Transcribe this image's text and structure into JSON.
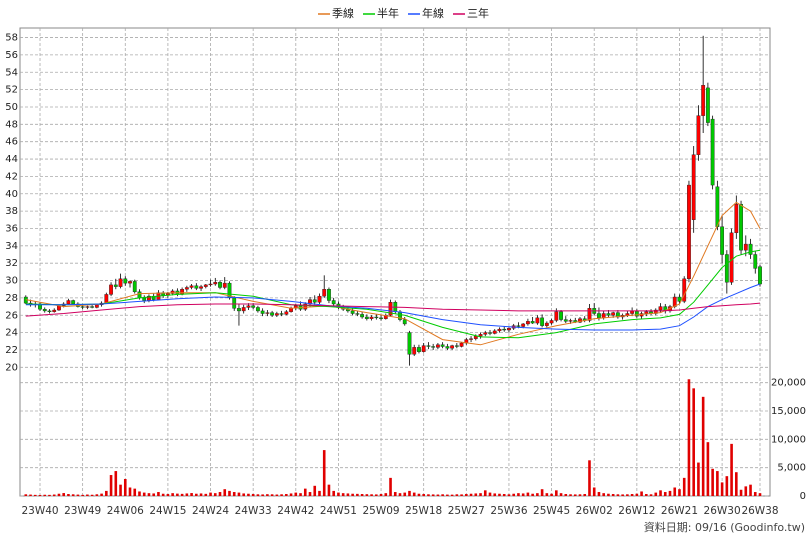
{
  "chart_data": {
    "type": "candlestick",
    "ylim": [
      19,
      59.1
    ],
    "yticks": [
      20,
      22,
      24,
      26,
      28,
      30,
      32,
      34,
      36,
      38,
      40,
      42,
      44,
      46,
      48,
      50,
      52,
      54,
      56,
      58
    ],
    "grid": true,
    "up_color": "#ff0000",
    "down_color": "#00c800",
    "footer": "資料日期: 09/16 (Goodinfo.tw)",
    "categories": [
      null,
      null,
      null,
      "23W40",
      null,
      null,
      null,
      null,
      null,
      null,
      null,
      null,
      "23W49",
      null,
      null,
      null,
      null,
      null,
      null,
      null,
      null,
      "24W06",
      null,
      null,
      null,
      null,
      null,
      null,
      null,
      null,
      "24W15",
      null,
      null,
      null,
      null,
      null,
      null,
      null,
      null,
      "24W24",
      null,
      null,
      null,
      null,
      null,
      null,
      null,
      null,
      "24W33",
      null,
      null,
      null,
      null,
      null,
      null,
      null,
      null,
      "24W42",
      null,
      null,
      null,
      null,
      null,
      null,
      null,
      null,
      "24W51",
      null,
      null,
      null,
      null,
      null,
      null,
      null,
      null,
      "25W09",
      null,
      null,
      null,
      null,
      null,
      null,
      null,
      null,
      "25W18",
      null,
      null,
      null,
      null,
      null,
      null,
      null,
      null,
      "25W27",
      null,
      null,
      null,
      null,
      null,
      null,
      null,
      null,
      "25W36",
      null,
      null,
      null,
      null,
      null,
      null,
      null,
      null,
      "25W45",
      null,
      null,
      null,
      null,
      null,
      null,
      null,
      null,
      "26W02",
      null,
      null,
      null,
      null,
      null,
      null,
      null,
      null,
      "26W12",
      null,
      null,
      null,
      null,
      null,
      null,
      null,
      null,
      "26W21",
      null,
      null,
      null,
      null,
      null,
      null,
      null,
      null,
      "26W30",
      null,
      null,
      null,
      null,
      null,
      null,
      null,
      "26W38"
    ],
    "ohlc": [
      [
        28.1,
        28.3,
        27.3,
        27.4
      ],
      [
        27.4,
        27.8,
        27.0,
        27.2
      ],
      [
        27.2,
        27.6,
        26.9,
        27.3
      ],
      [
        27.3,
        27.5,
        26.5,
        26.7
      ],
      [
        26.7,
        26.9,
        26.3,
        26.5
      ],
      [
        26.5,
        26.7,
        26.2,
        26.4
      ],
      [
        26.4,
        26.8,
        26.3,
        26.6
      ],
      [
        26.6,
        27.2,
        26.5,
        27.1
      ],
      [
        27.1,
        27.5,
        26.9,
        27.3
      ],
      [
        27.3,
        27.9,
        27.2,
        27.7
      ],
      [
        27.7,
        27.8,
        27.2,
        27.3
      ],
      [
        27.3,
        27.5,
        26.9,
        27.0
      ],
      [
        27.0,
        27.2,
        26.7,
        26.9
      ],
      [
        26.9,
        27.1,
        26.7,
        27.0
      ],
      [
        27.0,
        27.2,
        26.8,
        26.9
      ],
      [
        26.9,
        27.3,
        26.8,
        27.2
      ],
      [
        27.2,
        27.6,
        27.0,
        27.4
      ],
      [
        27.4,
        28.6,
        27.3,
        28.4
      ],
      [
        28.4,
        29.8,
        28.2,
        29.5
      ],
      [
        29.5,
        30.2,
        29.0,
        29.3
      ],
      [
        29.3,
        30.8,
        29.1,
        30.2
      ],
      [
        30.2,
        30.5,
        29.4,
        29.7
      ],
      [
        29.7,
        30.0,
        29.2,
        29.9
      ],
      [
        29.9,
        30.1,
        28.5,
        28.7
      ],
      [
        28.7,
        29.0,
        27.8,
        28.0
      ],
      [
        28.0,
        28.3,
        27.4,
        27.7
      ],
      [
        27.7,
        28.4,
        27.5,
        28.2
      ],
      [
        28.2,
        28.5,
        27.6,
        27.8
      ],
      [
        27.8,
        28.9,
        27.7,
        28.6
      ],
      [
        28.6,
        28.8,
        28.0,
        28.3
      ],
      [
        28.3,
        28.7,
        28.0,
        28.5
      ],
      [
        28.5,
        29.0,
        28.3,
        28.8
      ],
      [
        28.8,
        29.1,
        28.2,
        28.4
      ],
      [
        28.4,
        29.2,
        28.3,
        29.0
      ],
      [
        29.0,
        29.4,
        28.7,
        29.2
      ],
      [
        29.2,
        29.6,
        29.0,
        29.4
      ],
      [
        29.4,
        29.7,
        28.9,
        29.1
      ],
      [
        29.1,
        29.5,
        28.8,
        29.3
      ],
      [
        29.3,
        29.6,
        29.1,
        29.5
      ],
      [
        29.5,
        30.1,
        29.3,
        29.6
      ],
      [
        29.6,
        30.3,
        29.4,
        29.8
      ],
      [
        29.8,
        30.0,
        29.0,
        29.2
      ],
      [
        29.2,
        30.4,
        29.0,
        29.7
      ],
      [
        29.7,
        29.9,
        27.8,
        28.0
      ],
      [
        28.0,
        28.2,
        26.5,
        26.8
      ],
      [
        26.8,
        27.3,
        24.8,
        26.5
      ],
      [
        26.5,
        27.2,
        26.2,
        26.9
      ],
      [
        26.9,
        27.4,
        26.6,
        27.1
      ],
      [
        27.1,
        27.4,
        26.7,
        26.9
      ],
      [
        26.9,
        27.1,
        26.3,
        26.5
      ],
      [
        26.5,
        26.8,
        25.9,
        26.2
      ],
      [
        26.2,
        26.6,
        25.9,
        26.3
      ],
      [
        26.3,
        26.5,
        25.8,
        26.0
      ],
      [
        26.0,
        26.4,
        25.8,
        26.2
      ],
      [
        26.2,
        26.5,
        25.9,
        26.1
      ],
      [
        26.1,
        26.6,
        26.0,
        26.4
      ],
      [
        26.4,
        27.0,
        26.3,
        26.8
      ],
      [
        26.8,
        27.3,
        26.6,
        27.1
      ],
      [
        27.1,
        27.6,
        26.5,
        26.7
      ],
      [
        26.7,
        27.5,
        26.5,
        27.3
      ],
      [
        27.3,
        28.1,
        27.0,
        27.8
      ],
      [
        27.8,
        28.3,
        27.2,
        27.5
      ],
      [
        27.5,
        28.5,
        27.3,
        28.2
      ],
      [
        28.2,
        30.6,
        28.0,
        29.0
      ],
      [
        29.0,
        29.2,
        27.4,
        27.7
      ],
      [
        27.7,
        28.0,
        27.0,
        27.3
      ],
      [
        27.3,
        27.6,
        26.7,
        26.9
      ],
      [
        26.9,
        27.2,
        26.5,
        26.7
      ],
      [
        26.7,
        27.0,
        26.3,
        26.5
      ],
      [
        26.5,
        26.8,
        26.0,
        26.2
      ],
      [
        26.2,
        26.5,
        25.9,
        26.1
      ],
      [
        26.1,
        26.4,
        25.6,
        25.8
      ],
      [
        25.8,
        26.1,
        25.4,
        25.6
      ],
      [
        25.6,
        26.0,
        25.4,
        25.8
      ],
      [
        25.8,
        26.1,
        25.5,
        25.7
      ],
      [
        25.7,
        26.0,
        25.4,
        25.6
      ],
      [
        25.6,
        26.2,
        25.5,
        26.0
      ],
      [
        26.0,
        27.8,
        25.9,
        27.5
      ],
      [
        27.5,
        27.7,
        26.2,
        26.4
      ],
      [
        26.4,
        26.6,
        25.3,
        25.5
      ],
      [
        25.5,
        25.8,
        24.8,
        25.0
      ],
      [
        24.0,
        24.2,
        20.2,
        21.5
      ],
      [
        21.5,
        22.6,
        21.3,
        22.3
      ],
      [
        22.3,
        22.6,
        21.6,
        21.8
      ],
      [
        21.8,
        22.8,
        21.7,
        22.5
      ],
      [
        22.5,
        22.9,
        22.1,
        22.4
      ],
      [
        22.4,
        22.7,
        22.0,
        22.3
      ],
      [
        22.3,
        22.8,
        22.1,
        22.6
      ],
      [
        22.6,
        22.9,
        22.2,
        22.4
      ],
      [
        22.4,
        22.7,
        22.0,
        22.2
      ],
      [
        22.2,
        22.6,
        22.0,
        22.5
      ],
      [
        22.5,
        22.8,
        22.2,
        22.4
      ],
      [
        22.4,
        22.9,
        22.3,
        22.8
      ],
      [
        22.8,
        23.4,
        22.6,
        23.2
      ],
      [
        23.2,
        23.6,
        22.9,
        23.3
      ],
      [
        23.3,
        23.8,
        23.1,
        23.6
      ],
      [
        23.6,
        24.0,
        23.3,
        23.8
      ],
      [
        23.8,
        24.2,
        23.6,
        24.0
      ],
      [
        24.0,
        24.3,
        23.7,
        23.9
      ],
      [
        23.9,
        24.4,
        23.8,
        24.2
      ],
      [
        24.2,
        24.6,
        24.0,
        24.4
      ],
      [
        24.4,
        24.7,
        24.1,
        24.3
      ],
      [
        24.3,
        24.6,
        24.0,
        24.5
      ],
      [
        24.5,
        25.0,
        24.3,
        24.8
      ],
      [
        24.8,
        25.2,
        24.5,
        24.7
      ],
      [
        24.7,
        25.1,
        24.5,
        25.0
      ],
      [
        25.0,
        25.6,
        24.8,
        25.3
      ],
      [
        25.3,
        25.8,
        25.0,
        25.1
      ],
      [
        25.1,
        26.0,
        24.9,
        25.7
      ],
      [
        25.7,
        26.1,
        24.6,
        24.8
      ],
      [
        24.8,
        25.3,
        24.6,
        25.1
      ],
      [
        25.1,
        25.6,
        24.9,
        25.4
      ],
      [
        25.4,
        26.8,
        25.2,
        26.4
      ],
      [
        26.4,
        26.6,
        25.3,
        25.5
      ],
      [
        25.5,
        25.9,
        25.1,
        25.3
      ],
      [
        25.3,
        25.6,
        25.0,
        25.4
      ],
      [
        25.4,
        25.7,
        25.1,
        25.2
      ],
      [
        25.2,
        25.8,
        25.1,
        25.6
      ],
      [
        25.6,
        25.9,
        25.2,
        25.4
      ],
      [
        25.4,
        27.3,
        25.2,
        26.8
      ],
      [
        26.8,
        27.4,
        26.0,
        26.2
      ],
      [
        26.2,
        26.9,
        25.4,
        25.7
      ],
      [
        25.7,
        26.5,
        25.5,
        26.2
      ],
      [
        26.2,
        26.6,
        25.8,
        26.0
      ],
      [
        26.0,
        26.4,
        25.7,
        26.3
      ],
      [
        26.3,
        26.6,
        25.6,
        25.8
      ],
      [
        25.8,
        26.2,
        25.5,
        26.0
      ],
      [
        26.0,
        26.5,
        25.8,
        26.2
      ],
      [
        26.2,
        26.9,
        25.9,
        26.5
      ],
      [
        26.5,
        26.7,
        25.7,
        25.9
      ],
      [
        25.9,
        26.4,
        25.6,
        26.2
      ],
      [
        26.2,
        26.6,
        25.9,
        26.4
      ],
      [
        26.4,
        26.7,
        26.0,
        26.2
      ],
      [
        26.2,
        26.8,
        26.0,
        26.6
      ],
      [
        26.6,
        27.4,
        26.3,
        27.0
      ],
      [
        27.0,
        27.3,
        26.2,
        26.5
      ],
      [
        26.5,
        27.2,
        26.3,
        27.0
      ],
      [
        27.0,
        28.5,
        26.8,
        28.1
      ],
      [
        28.1,
        28.4,
        27.3,
        27.6
      ],
      [
        27.6,
        30.5,
        27.4,
        30.2
      ],
      [
        30.2,
        41.5,
        29.8,
        41.0
      ],
      [
        37.0,
        45.5,
        35.5,
        44.5
      ],
      [
        44.5,
        50.2,
        43.8,
        49.0
      ],
      [
        49.0,
        58.2,
        47.0,
        52.5
      ],
      [
        52.2,
        52.8,
        47.8,
        48.2
      ],
      [
        48.6,
        49.0,
        40.5,
        41.0
      ],
      [
        40.8,
        41.5,
        35.8,
        36.2
      ],
      [
        36.2,
        37.5,
        32.0,
        33.0
      ],
      [
        33.0,
        33.5,
        28.5,
        29.8
      ],
      [
        29.8,
        36.0,
        29.5,
        35.5
      ],
      [
        35.5,
        39.8,
        34.8,
        38.8
      ],
      [
        38.8,
        39.2,
        33.0,
        33.5
      ],
      [
        33.5,
        35.2,
        32.8,
        34.2
      ],
      [
        34.2,
        34.8,
        32.5,
        33.0
      ],
      [
        33.0,
        33.4,
        30.8,
        31.4
      ],
      [
        31.6,
        31.8,
        29.3,
        29.6
      ]
    ],
    "series": [
      {
        "name": "季線",
        "color": "#e07820",
        "x": [
          0,
          8,
          16,
          24,
          32,
          40,
          48,
          56,
          64,
          72,
          80,
          88,
          96,
          104,
          112,
          120,
          128,
          134,
          138,
          141,
          144,
          147,
          150,
          153,
          155
        ],
        "values": [
          27.8,
          27.0,
          27.3,
          28.5,
          28.6,
          28.6,
          27.6,
          26.8,
          27.1,
          26.3,
          25.6,
          23.2,
          22.6,
          23.8,
          24.8,
          25.6,
          26.0,
          26.3,
          27.3,
          30.5,
          34.0,
          37.5,
          39.0,
          38.0,
          36.0
        ]
      },
      {
        "name": "半年",
        "color": "#00cc00",
        "x": [
          0,
          8,
          16,
          24,
          32,
          40,
          48,
          56,
          64,
          72,
          80,
          88,
          96,
          104,
          112,
          120,
          128,
          134,
          138,
          141,
          144,
          147,
          150,
          153,
          155
        ],
        "values": [
          27.3,
          27.2,
          27.3,
          28.0,
          28.4,
          28.6,
          28.2,
          27.2,
          27.0,
          26.7,
          26.0,
          24.6,
          23.5,
          23.4,
          24.0,
          25.0,
          25.5,
          25.7,
          26.1,
          27.5,
          29.5,
          31.5,
          32.8,
          33.3,
          33.5
        ]
      },
      {
        "name": "年線",
        "color": "#1e50ff",
        "x": [
          0,
          8,
          16,
          24,
          32,
          40,
          48,
          56,
          64,
          72,
          80,
          88,
          96,
          104,
          112,
          120,
          128,
          134,
          138,
          141,
          144,
          147,
          150,
          153,
          155
        ],
        "values": [
          27.2,
          27.2,
          27.3,
          27.6,
          27.9,
          28.1,
          28.0,
          27.6,
          27.1,
          26.8,
          26.3,
          25.5,
          24.9,
          24.6,
          24.4,
          24.3,
          24.3,
          24.4,
          24.8,
          25.8,
          27.0,
          27.8,
          28.5,
          29.2,
          29.6
        ]
      },
      {
        "name": "三年",
        "color": "#d00060",
        "x": [
          0,
          8,
          16,
          24,
          32,
          40,
          48,
          56,
          64,
          72,
          80,
          88,
          96,
          104,
          112,
          120,
          128,
          134,
          138,
          141,
          144,
          147,
          150,
          153,
          155
        ],
        "values": [
          25.9,
          26.2,
          26.6,
          27.0,
          27.2,
          27.3,
          27.3,
          27.2,
          27.1,
          27.0,
          26.9,
          26.7,
          26.6,
          26.5,
          26.5,
          26.5,
          26.5,
          26.5,
          26.6,
          26.8,
          27.0,
          27.1,
          27.2,
          27.3,
          27.4
        ]
      }
    ],
    "volume": {
      "color": "#e00000",
      "ylim": [
        0,
        21000
      ],
      "yticks": [
        0,
        {
          "value": 5000,
          "label": "5,000"
        },
        {
          "value": 10000,
          "label": "10,000"
        },
        {
          "value": 15000,
          "label": "15,000"
        },
        {
          "value": 20000,
          "label": "20,000"
        }
      ],
      "values": [
        300,
        250,
        200,
        180,
        220,
        200,
        260,
        400,
        520,
        350,
        300,
        250,
        200,
        260,
        220,
        300,
        420,
        900,
        3700,
        4400,
        2000,
        3000,
        1500,
        1300,
        800,
        600,
        500,
        450,
        700,
        400,
        350,
        500,
        420,
        380,
        450,
        520,
        400,
        450,
        380,
        600,
        500,
        700,
        1200,
        900,
        700,
        600,
        450,
        400,
        350,
        300,
        280,
        320,
        300,
        260,
        300,
        350,
        450,
        600,
        500,
        1300,
        700,
        1800,
        900,
        8100,
        2000,
        900,
        600,
        500,
        450,
        400,
        380,
        350,
        320,
        300,
        280,
        350,
        500,
        3200,
        700,
        500,
        600,
        900,
        600,
        400,
        350,
        300,
        280,
        260,
        300,
        250,
        240,
        300,
        280,
        350,
        400,
        450,
        500,
        1000,
        600,
        450,
        400,
        350,
        300,
        400,
        500,
        450,
        600,
        400,
        500,
        1200,
        500,
        400,
        1000,
        500,
        350,
        300,
        280,
        300,
        350,
        6300,
        1500,
        700,
        500,
        400,
        350,
        300,
        280,
        300,
        350,
        400,
        800,
        350,
        300,
        600,
        1000,
        700,
        900,
        1500,
        1200,
        3200,
        20600,
        19000,
        5900,
        17500,
        9500,
        4800,
        4400,
        2400,
        3500,
        9200,
        4200,
        1100,
        1700,
        2000,
        700,
        500
      ]
    }
  }
}
